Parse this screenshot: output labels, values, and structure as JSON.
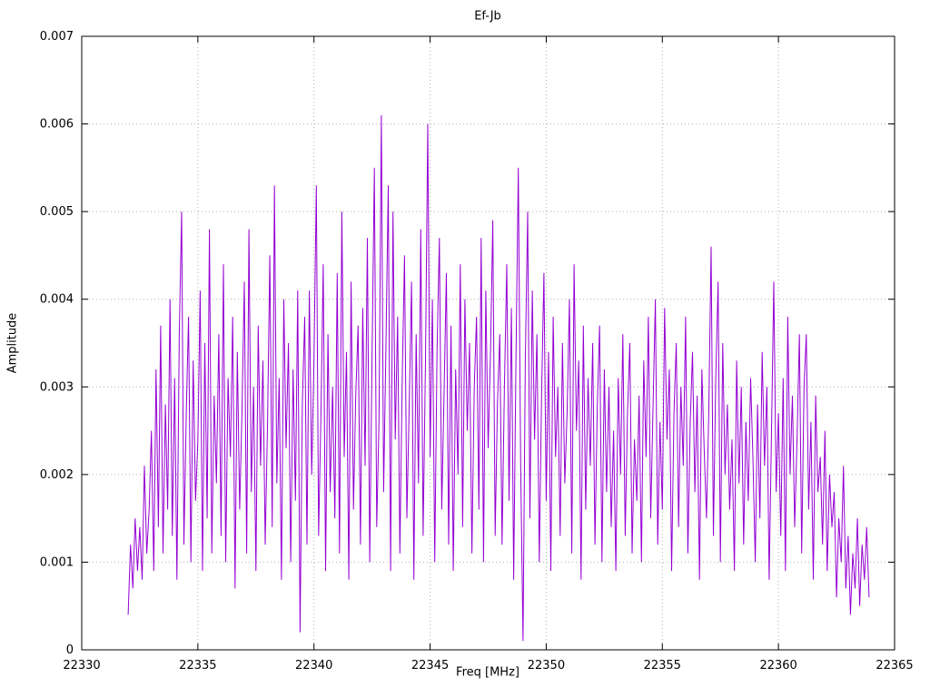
{
  "chart_data": {
    "type": "line",
    "title": "Ef-Jb",
    "xlabel": "Freq [MHz]",
    "ylabel": "Amplitude",
    "xlim": [
      22330,
      22365
    ],
    "ylim": [
      0,
      0.007
    ],
    "x_ticks": [
      22330,
      22335,
      22340,
      22345,
      22350,
      22355,
      22360,
      22365
    ],
    "x_tick_labels": [
      "22330",
      "22335",
      "22340",
      "22345",
      "22350",
      "22355",
      "22360",
      "22365"
    ],
    "y_ticks": [
      0,
      0.001,
      0.002,
      0.003,
      0.004,
      0.005,
      0.006,
      0.007
    ],
    "y_tick_labels": [
      "0",
      "0.001",
      "0.002",
      "0.003",
      "0.004",
      "0.005",
      "0.006",
      "0.007"
    ],
    "grid": true,
    "grid_style": "dotted",
    "legend_position": "none",
    "line_color": "#9400d3",
    "series": [
      {
        "name": "Ef-Jb",
        "x_start": 22332.0,
        "x_step": 0.1,
        "values": [
          0.0004,
          0.0012,
          0.0007,
          0.0015,
          0.0009,
          0.0014,
          0.0008,
          0.0021,
          0.0011,
          0.0016,
          0.0025,
          0.0009,
          0.0032,
          0.0014,
          0.0037,
          0.0011,
          0.0028,
          0.0016,
          0.004,
          0.0013,
          0.0031,
          0.0008,
          0.0036,
          0.005,
          0.0012,
          0.0027,
          0.0038,
          0.001,
          0.0033,
          0.0017,
          0.0024,
          0.0041,
          0.0009,
          0.0035,
          0.0015,
          0.0048,
          0.0011,
          0.0029,
          0.0019,
          0.0036,
          0.0013,
          0.0044,
          0.001,
          0.0031,
          0.0022,
          0.0038,
          0.0007,
          0.0034,
          0.0016,
          0.0027,
          0.0042,
          0.0011,
          0.0048,
          0.0018,
          0.003,
          0.0009,
          0.0037,
          0.0021,
          0.0033,
          0.0012,
          0.0026,
          0.0045,
          0.0014,
          0.0053,
          0.0019,
          0.0031,
          0.0008,
          0.004,
          0.0023,
          0.0035,
          0.001,
          0.0032,
          0.0017,
          0.0041,
          0.0002,
          0.0028,
          0.0038,
          0.0012,
          0.0041,
          0.002,
          0.0033,
          0.0053,
          0.0013,
          0.0027,
          0.0044,
          0.0009,
          0.0036,
          0.0018,
          0.003,
          0.0015,
          0.0043,
          0.0011,
          0.005,
          0.0022,
          0.0034,
          0.0008,
          0.0042,
          0.0016,
          0.0029,
          0.0037,
          0.0012,
          0.0039,
          0.0021,
          0.0047,
          0.001,
          0.0033,
          0.0055,
          0.0014,
          0.0026,
          0.0061,
          0.0018,
          0.0035,
          0.0053,
          0.0009,
          0.005,
          0.0024,
          0.0038,
          0.0011,
          0.0031,
          0.0045,
          0.0015,
          0.0028,
          0.0042,
          0.0008,
          0.0036,
          0.0019,
          0.0048,
          0.0013,
          0.0033,
          0.006,
          0.0022,
          0.004,
          0.001,
          0.0034,
          0.0047,
          0.0016,
          0.0029,
          0.0043,
          0.0012,
          0.0037,
          0.0009,
          0.0032,
          0.002,
          0.0044,
          0.0014,
          0.004,
          0.0025,
          0.0035,
          0.0011,
          0.003,
          0.0038,
          0.0016,
          0.0047,
          0.001,
          0.0041,
          0.0023,
          0.0034,
          0.0049,
          0.0013,
          0.0028,
          0.0036,
          0.0012,
          0.003,
          0.0044,
          0.0017,
          0.0039,
          0.0008,
          0.0034,
          0.0055,
          0.0021,
          0.0001,
          0.0033,
          0.005,
          0.0015,
          0.0041,
          0.0024,
          0.0036,
          0.001,
          0.0029,
          0.0043,
          0.0017,
          0.0034,
          0.0009,
          0.0038,
          0.0022,
          0.003,
          0.0013,
          0.0035,
          0.0019,
          0.0027,
          0.004,
          0.0011,
          0.0044,
          0.0025,
          0.0033,
          0.0008,
          0.0037,
          0.0016,
          0.0031,
          0.0021,
          0.0035,
          0.0012,
          0.0028,
          0.0037,
          0.001,
          0.0032,
          0.0018,
          0.003,
          0.0014,
          0.0025,
          0.0009,
          0.0031,
          0.002,
          0.0036,
          0.0013,
          0.0027,
          0.0035,
          0.0011,
          0.0024,
          0.0017,
          0.0029,
          0.001,
          0.0033,
          0.0022,
          0.0038,
          0.0015,
          0.0028,
          0.004,
          0.0012,
          0.0026,
          0.0016,
          0.0039,
          0.0024,
          0.0032,
          0.0009,
          0.0027,
          0.0035,
          0.0014,
          0.003,
          0.0021,
          0.0038,
          0.0011,
          0.0026,
          0.0034,
          0.0018,
          0.0029,
          0.0008,
          0.0032,
          0.0023,
          0.0015,
          0.0027,
          0.0046,
          0.0013,
          0.0031,
          0.0042,
          0.001,
          0.0035,
          0.002,
          0.0028,
          0.0016,
          0.0024,
          0.0009,
          0.0033,
          0.0019,
          0.003,
          0.0012,
          0.0026,
          0.0017,
          0.0031,
          0.0022,
          0.001,
          0.0028,
          0.0015,
          0.0034,
          0.0021,
          0.003,
          0.0008,
          0.0025,
          0.0042,
          0.0018,
          0.0027,
          0.0013,
          0.0031,
          0.0009,
          0.0038,
          0.002,
          0.0029,
          0.0014,
          0.0024,
          0.0036,
          0.0011,
          0.003,
          0.0036,
          0.0016,
          0.0026,
          0.0008,
          0.0029,
          0.0018,
          0.0022,
          0.0012,
          0.0025,
          0.0009,
          0.002,
          0.0014,
          0.0018,
          0.0006,
          0.0015,
          0.001,
          0.0021,
          0.0007,
          0.0013,
          0.0004,
          0.0011,
          0.0007,
          0.0015,
          0.0005,
          0.0012,
          0.0008,
          0.0014,
          0.0006
        ]
      }
    ]
  }
}
